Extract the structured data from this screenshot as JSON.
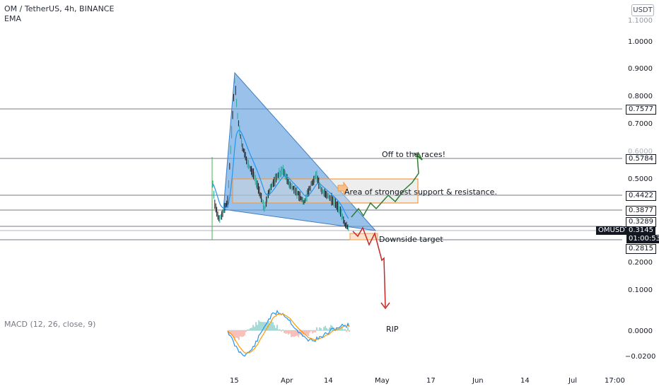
{
  "header": {
    "symbol_line": "OM / TetherUS, 4h, BINANCE",
    "indicator": "EMA",
    "scale_currency": "USDT"
  },
  "price_axis": {
    "ticks": [
      "1.0000",
      "0.9000",
      "0.8000",
      "0.7000",
      "0.6000",
      "0.5000",
      "0.2000",
      "0.1000"
    ],
    "top_partial": "1.1000"
  },
  "level_badges": [
    "0.7577",
    "0.5784",
    "0.4422",
    "0.3877",
    "0.3289",
    "0.2815"
  ],
  "current": {
    "ticker": "OMUSDT",
    "price": "0.3145",
    "countdown": "01:00:53"
  },
  "time_axis": [
    "15",
    "Apr",
    "14",
    "May",
    "17",
    "Jun",
    "14",
    "Jul",
    "17:00"
  ],
  "annotations": {
    "bull": "Off to the races!",
    "zone": "Area of strongest support & resistance.",
    "bear": "Downside target",
    "rip": "RIP"
  },
  "macd": {
    "label": "MACD (12, 26, close, 9)",
    "ticks": [
      "0.0000",
      "−0.0200"
    ]
  },
  "colors": {
    "triangle": "#5b9bdc",
    "zone": "#f7a35c",
    "bull_arrow": "#2e7d32",
    "bear_arrow": "#c62828",
    "candle_up": "#26a69a",
    "candle_down": "#1b1b1b",
    "ema": "#2196f3"
  }
}
